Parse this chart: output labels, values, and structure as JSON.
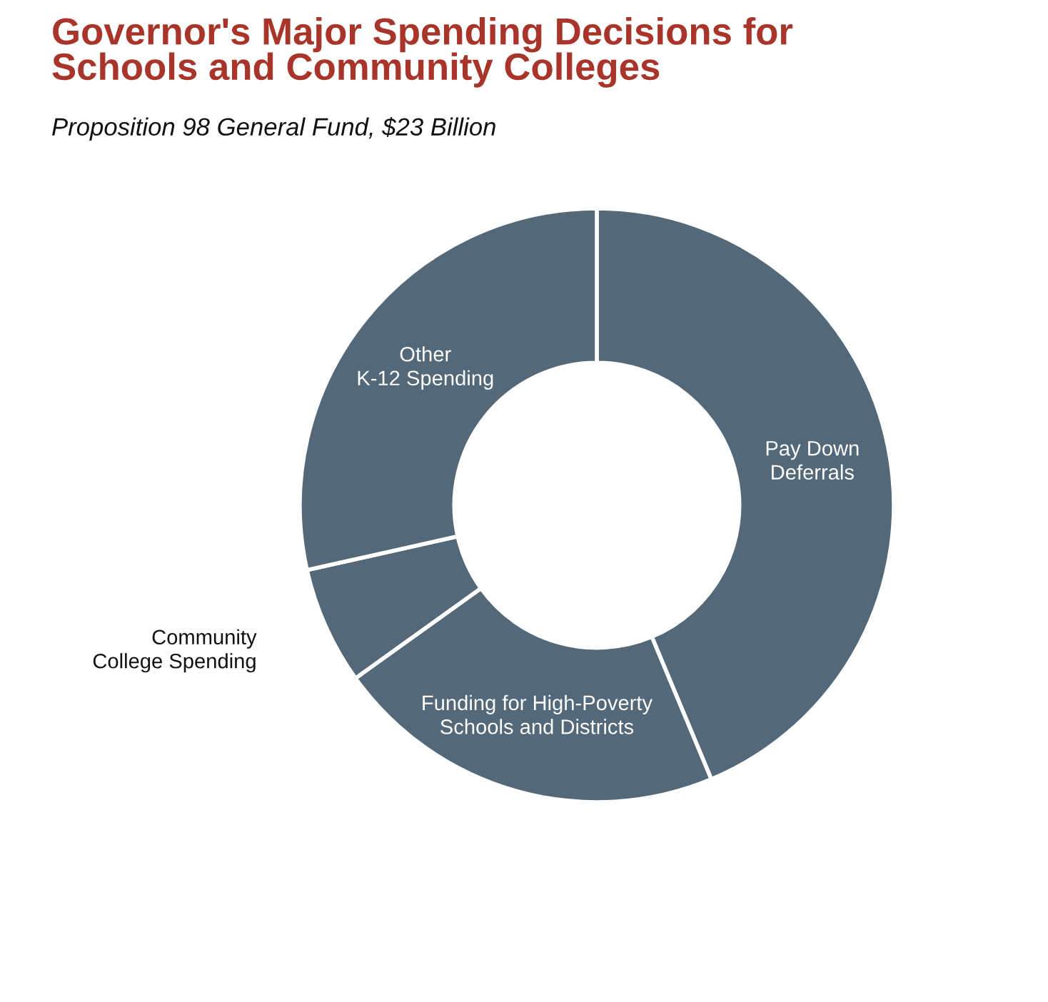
{
  "chart_data": {
    "type": "donut",
    "title": "Governor's Major Spending Decisions for\nSchools and Community Colleges",
    "subtitle": "Proposition 98 General Fund, $23 Billion",
    "categories": [
      "Pay Down\nDeferrals",
      "Funding for High-Poverty\nSchools and Districts",
      "Community\nCollege Spending",
      "Other\nK-12 Spending"
    ],
    "values": [
      43.7,
      21.4,
      6.4,
      28.5
    ],
    "colors": [
      "#536878",
      "#536878",
      "#536878",
      "#536878"
    ]
  }
}
